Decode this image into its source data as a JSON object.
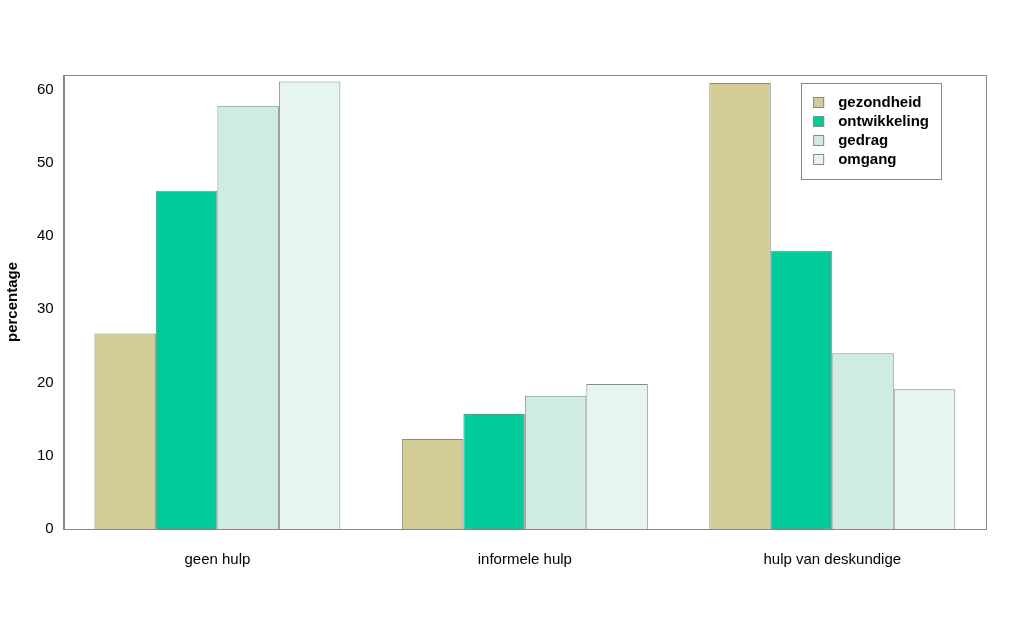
{
  "chart_data": {
    "type": "bar",
    "y_label": "percentage",
    "categories": [
      "geen hulp",
      "informele hulp",
      "hulp van deskundige"
    ],
    "series": [
      {
        "name": "gezondheid",
        "color": "#d3cd95",
        "values": [
          26.7,
          12.3,
          60.9
        ]
      },
      {
        "name": "ontwikkeling",
        "color": "#00cc99",
        "values": [
          46.2,
          15.7,
          38.0
        ]
      },
      {
        "name": "gedrag",
        "color": "#ceede0",
        "values": [
          57.8,
          18.2,
          24.0
        ]
      },
      {
        "name": "omgang",
        "color": "#e6f6ef",
        "values": [
          61.1,
          19.8,
          19.1
        ]
      }
    ],
    "ylim": [
      0,
      62
    ],
    "yticks": [
      0,
      10,
      20,
      30,
      40,
      50,
      60
    ],
    "grid": false,
    "legend": "top-right"
  }
}
